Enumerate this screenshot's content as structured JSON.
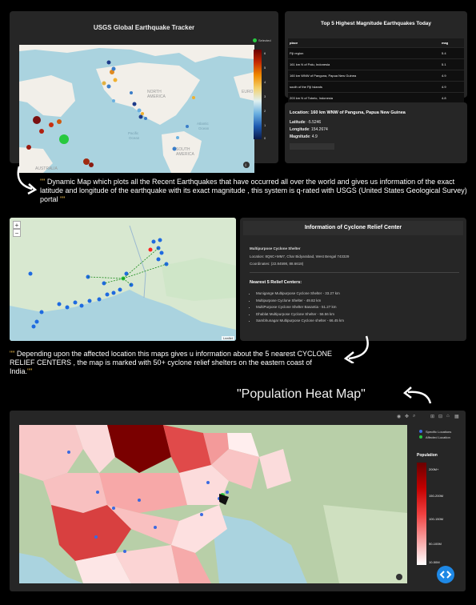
{
  "eq_panel": {
    "title": "USGS Global Earthquake Tracker",
    "legend_selected": "Selected",
    "colorbar_ticks": [
      "6",
      "5",
      "4",
      "3",
      "2",
      "1",
      "0"
    ],
    "map_labels": {
      "north_america": "NORTH AMERICA",
      "south_america": "SOUTH AMERICA",
      "pacific": "Pacific Ocean",
      "atlantic": "Atlantic Ocean",
      "australia": "AUSTRALIA",
      "europe": "EURO"
    }
  },
  "top5": {
    "title": "Top 5 Highest Magnitude Earthquakes Today",
    "headers": [
      "place",
      "mag"
    ],
    "rows": [
      [
        "Fiji region",
        "5.4"
      ],
      [
        "161 km N of Palu, Indonesia",
        "5.1"
      ],
      [
        "160 km WNW of Panguna, Papua New Guinea",
        "4.9"
      ],
      [
        "south of the Fiji Islands",
        "4.9"
      ],
      [
        "203 km N of Tobelo, Indonesia",
        "4.8"
      ]
    ]
  },
  "location": {
    "title": "Location: 160 km WNW of Panguna, Papua New Guinea",
    "lat_label": "Latitude",
    "lat_value": ": -5.5246",
    "lon_label": "Longitude",
    "lon_value": ": 154.2674",
    "mag_label": "Magnitude",
    "mag_value": ": 4.9"
  },
  "caption1": {
    "open_quote": "\"\"",
    "text": " Dynamic Map which plots all the Recent Earthquakes that have occurred all over the world and gives us information of the exact latitude and longitude of the earthquake with its exact magnitude , this system is q-rated with USGS (United States Geological Survey) portal ",
    "close_quote": "\"\""
  },
  "relief_map": {
    "zoom_in": "+",
    "zoom_out": "−",
    "attribution": "Leaflet"
  },
  "relief_info": {
    "title": "Information of Cyclone Relief Center",
    "center_name": "Multipurpose Cyclone Shelter",
    "location": "Location: 8Q6C+MM7, Char Bidyarabad, West Bengal 743329",
    "coordinates": "Coordinates: (22.84598, 88.6618)",
    "nearest_title": "Nearest 5 Relief Centers:",
    "nearest": [
      "Munigange Multipurpose Cyclone Shelter - 33.27 km",
      "Multipurpose Cyclone Shelter - 49.82 km",
      "MultiPurpose Cyclone Shelter Basantia - 51.27 km",
      "Dhablat Multipurpose Cyclone Shelter - 56.56 km",
      "Sambhunagar Multipurpose Cyclone shelter - 66.45 km"
    ]
  },
  "caption2": {
    "open_quote": "\"\"",
    "text": " Depending upon the affected location this maps gives u information about the 5 nearest CYCLONE RELIEF CENTERS , the map is marked with 50+ cyclone relief shelters on the eastern coast of India.",
    "close_quote": "\"\""
  },
  "heat": {
    "heading": "\"Population Heat Map\"",
    "legend_specific": "Specific Locations",
    "legend_affected": "Affected Location",
    "pop_title": "Population",
    "pop_ticks": [
      "200M+",
      "150-200M",
      "100-150M",
      "50-100M",
      "10-50M"
    ]
  },
  "colors": {
    "accent_quote": "#e8b84a",
    "panel": "#262626",
    "nav_button": "#1e88e5"
  }
}
